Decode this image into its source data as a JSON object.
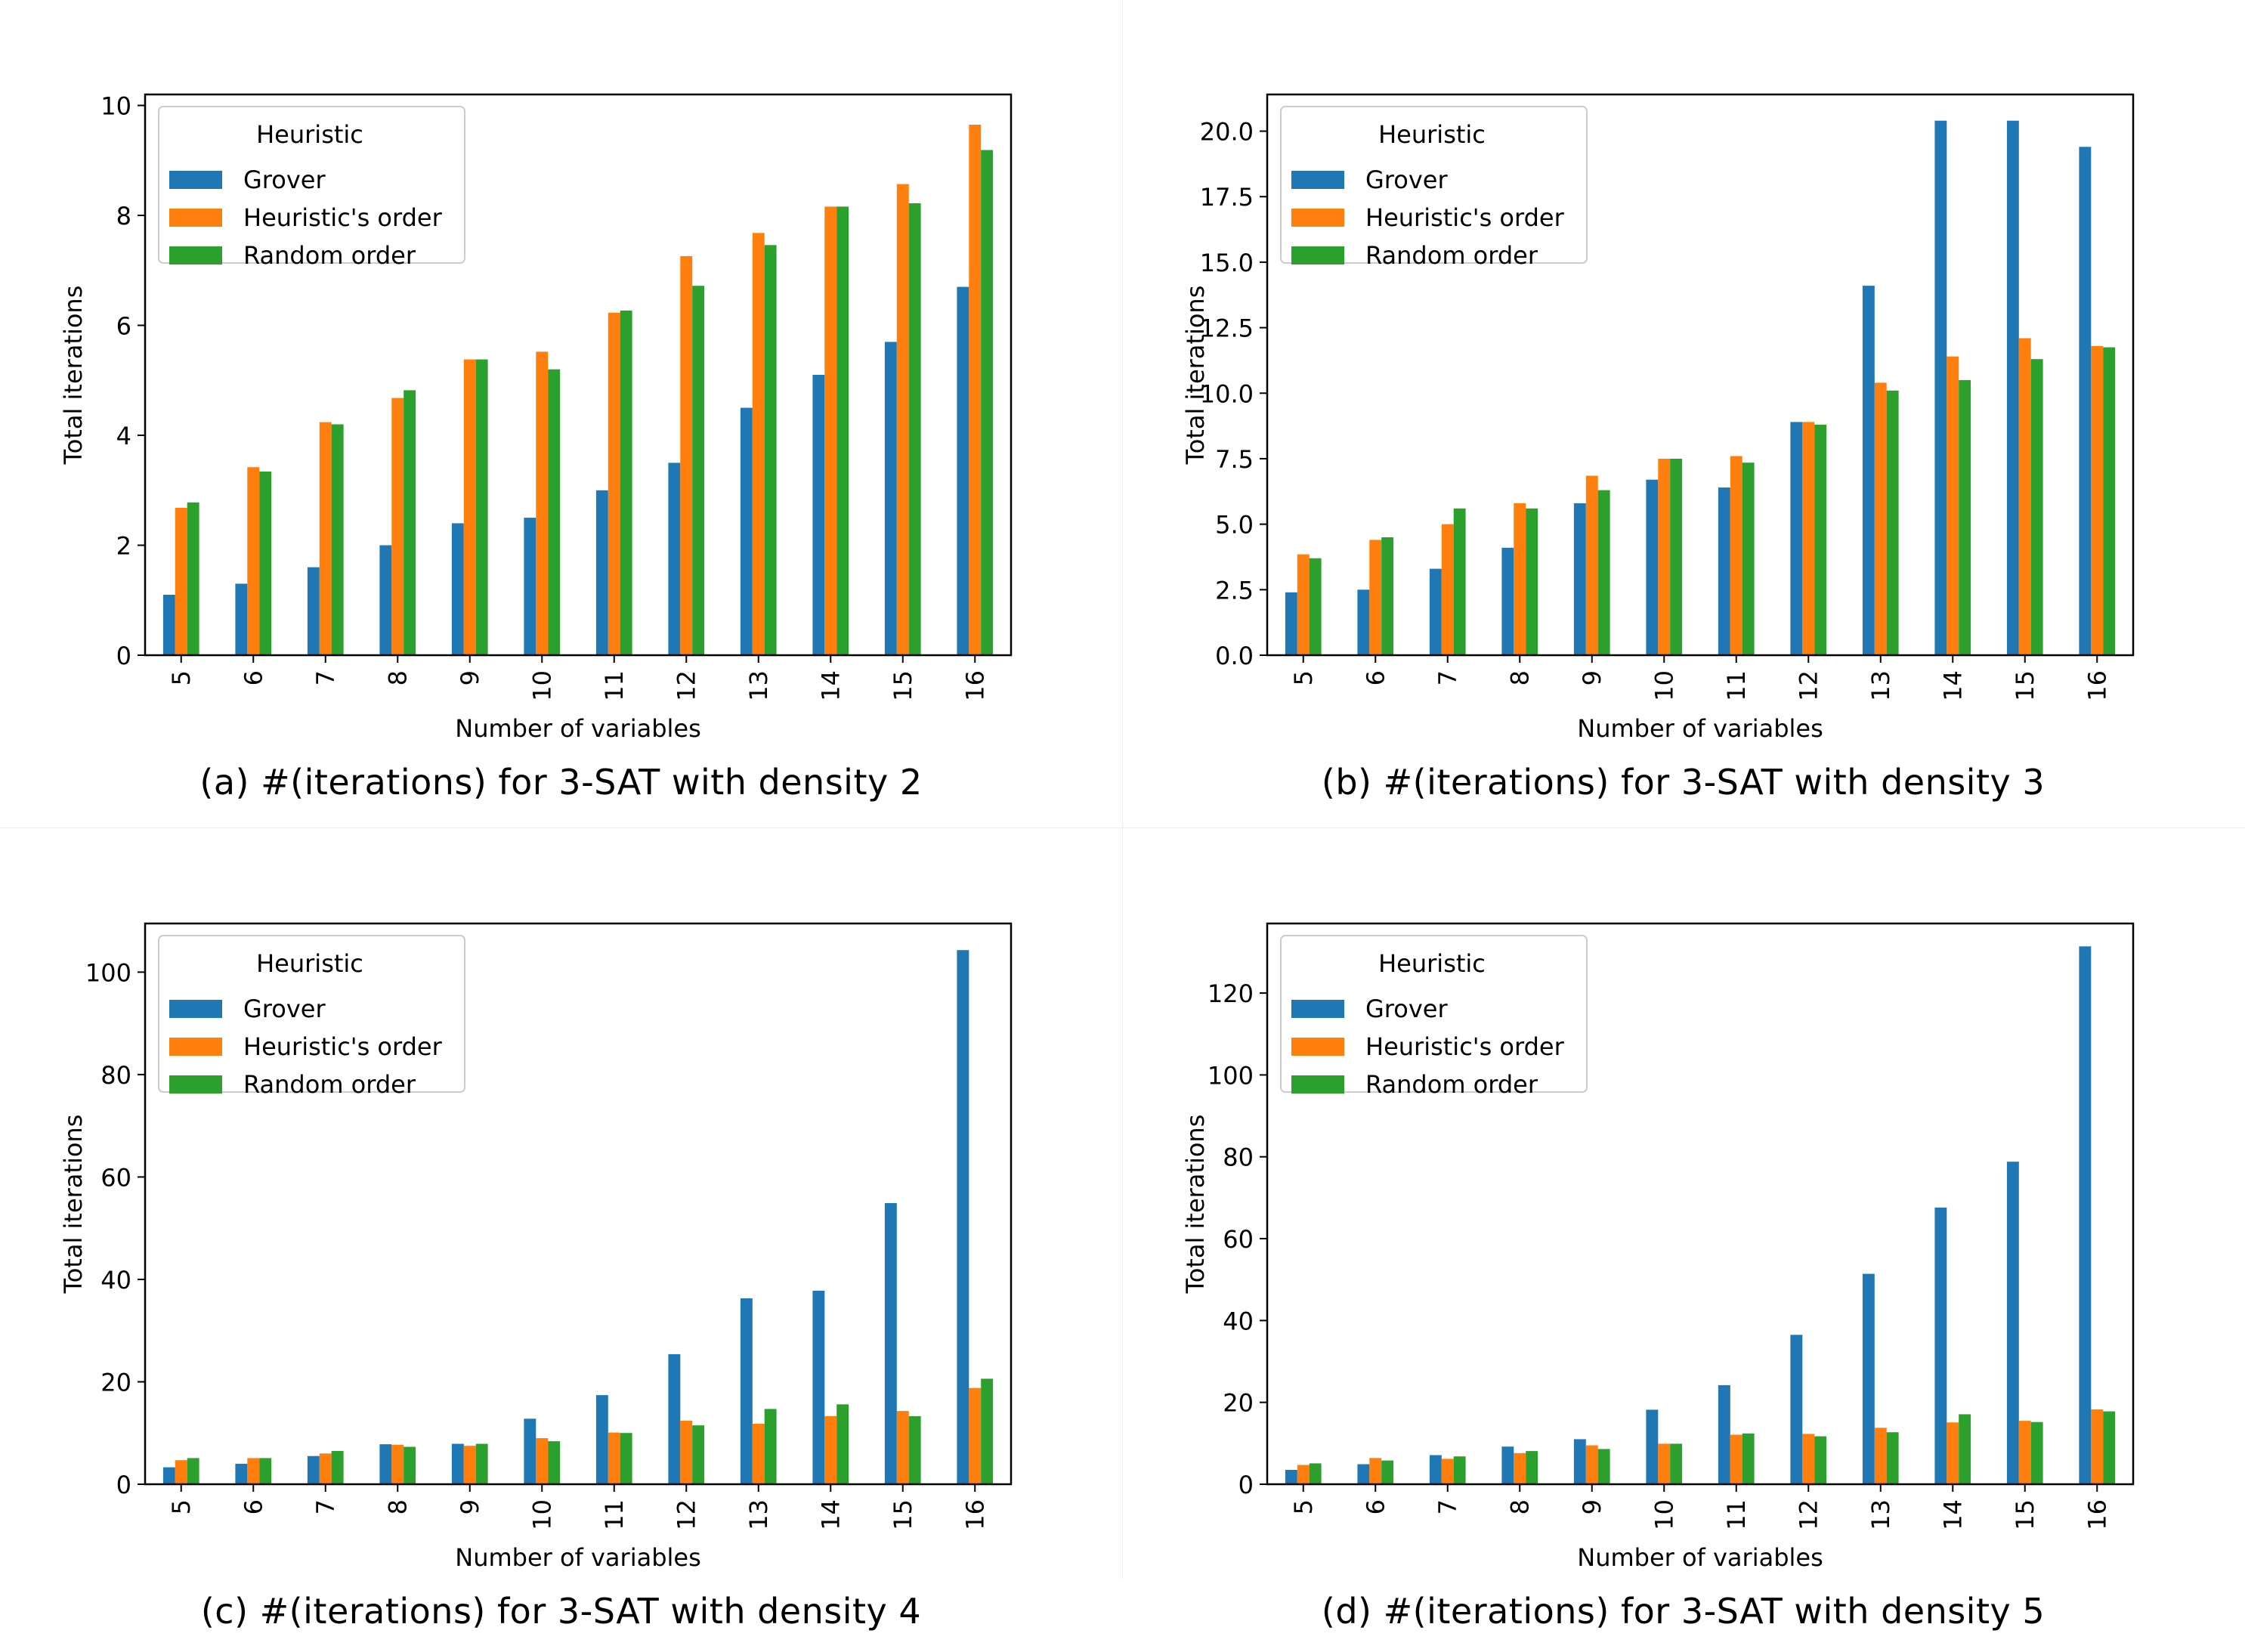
{
  "legend": {
    "title": "Heuristic",
    "entries": [
      "Grover",
      "Heuristic's order",
      "Random order"
    ]
  },
  "colors": {
    "Grover": "#1f77b4",
    "Heuristic's order": "#ff7f0e",
    "Random order": "#2ca02c"
  },
  "chart_data": [
    {
      "type": "bar",
      "caption": "(a) #(iterations) for 3-SAT with density 2",
      "xlabel": "Number of variables",
      "ylabel": "Total iterations",
      "categories": [
        "5",
        "6",
        "7",
        "8",
        "9",
        "10",
        "11",
        "12",
        "13",
        "14",
        "15",
        "16"
      ],
      "ylim": [
        0,
        10.2
      ],
      "yticks": [
        0,
        2,
        4,
        6,
        8,
        10
      ],
      "ytick_labels": [
        "0",
        "2",
        "4",
        "6",
        "8",
        "10"
      ],
      "series": [
        {
          "name": "Grover",
          "values": [
            1.1,
            1.3,
            1.6,
            2.0,
            2.4,
            2.5,
            3.0,
            3.5,
            4.5,
            5.1,
            5.7,
            6.7
          ]
        },
        {
          "name": "Heuristic's order",
          "values": [
            2.68,
            3.42,
            4.24,
            4.68,
            5.38,
            5.52,
            6.23,
            7.26,
            7.68,
            8.16,
            8.57,
            9.65
          ]
        },
        {
          "name": "Random order",
          "values": [
            2.78,
            3.34,
            4.2,
            4.82,
            5.38,
            5.2,
            6.27,
            6.72,
            7.46,
            8.16,
            8.22,
            9.19
          ]
        }
      ]
    },
    {
      "type": "bar",
      "caption": "(b) #(iterations) for 3-SAT with density 3",
      "xlabel": "Number of variables",
      "ylabel": "Total iterations",
      "categories": [
        "5",
        "6",
        "7",
        "8",
        "9",
        "10",
        "11",
        "12",
        "13",
        "14",
        "15",
        "16"
      ],
      "ylim": [
        0,
        21.4
      ],
      "yticks": [
        0,
        2.5,
        5,
        7.5,
        10,
        12.5,
        15,
        17.5,
        20
      ],
      "ytick_labels": [
        "0.0",
        "2.5",
        "5.0",
        "7.5",
        "10.0",
        "12.5",
        "15.0",
        "17.5",
        "20.0"
      ],
      "series": [
        {
          "name": "Grover",
          "values": [
            2.4,
            2.5,
            3.3,
            4.1,
            5.8,
            6.7,
            6.4,
            8.9,
            14.1,
            20.4,
            20.4,
            19.4
          ]
        },
        {
          "name": "Heuristic's order",
          "values": [
            3.85,
            4.4,
            5.0,
            5.8,
            6.85,
            7.5,
            7.6,
            8.9,
            10.4,
            11.4,
            12.1,
            11.8
          ]
        },
        {
          "name": "Random order",
          "values": [
            3.7,
            4.5,
            5.6,
            5.6,
            6.3,
            7.5,
            7.35,
            8.8,
            10.1,
            10.5,
            11.3,
            11.75
          ]
        }
      ]
    },
    {
      "type": "bar",
      "caption": "(c) #(iterations) for 3-SAT with density 4",
      "xlabel": "Number of variables",
      "ylabel": "Total iterations",
      "categories": [
        "5",
        "6",
        "7",
        "8",
        "9",
        "10",
        "11",
        "12",
        "13",
        "14",
        "15",
        "16"
      ],
      "ylim": [
        0,
        109.5
      ],
      "yticks": [
        0,
        20,
        40,
        60,
        80,
        100
      ],
      "ytick_labels": [
        "0",
        "20",
        "40",
        "60",
        "80",
        "100"
      ],
      "series": [
        {
          "name": "Grover",
          "values": [
            3.3,
            4.0,
            5.5,
            7.8,
            7.9,
            12.8,
            17.4,
            25.4,
            36.3,
            37.8,
            54.9,
            104.3
          ]
        },
        {
          "name": "Heuristic's order",
          "values": [
            4.7,
            5.1,
            6.0,
            7.7,
            7.5,
            9.0,
            10.1,
            12.4,
            11.8,
            13.3,
            14.3,
            18.8
          ]
        },
        {
          "name": "Random order",
          "values": [
            5.1,
            5.1,
            6.5,
            7.3,
            7.9,
            8.4,
            10.0,
            11.5,
            14.7,
            15.6,
            13.3,
            20.6
          ]
        }
      ]
    },
    {
      "type": "bar",
      "caption": "(d) #(iterations) for 3-SAT with density 5",
      "xlabel": "Number of variables",
      "ylabel": "Total iterations",
      "categories": [
        "5",
        "6",
        "7",
        "8",
        "9",
        "10",
        "11",
        "12",
        "13",
        "14",
        "15",
        "16"
      ],
      "ylim": [
        0,
        137
      ],
      "yticks": [
        0,
        20,
        40,
        60,
        80,
        100,
        120
      ],
      "ytick_labels": [
        "0",
        "20",
        "40",
        "60",
        "80",
        "100",
        "120"
      ],
      "series": [
        {
          "name": "Grover",
          "values": [
            3.5,
            4.9,
            7.1,
            9.2,
            11.0,
            18.2,
            24.2,
            36.5,
            51.4,
            67.6,
            78.8,
            131.4
          ]
        },
        {
          "name": "Heuristic's order",
          "values": [
            4.7,
            6.4,
            6.2,
            7.6,
            9.5,
            9.9,
            12.1,
            12.3,
            13.8,
            15.1,
            15.5,
            18.3
          ]
        },
        {
          "name": "Random order",
          "values": [
            5.1,
            5.8,
            6.8,
            8.1,
            8.6,
            9.9,
            12.4,
            11.7,
            12.7,
            17.1,
            15.2,
            17.8
          ]
        }
      ]
    }
  ]
}
